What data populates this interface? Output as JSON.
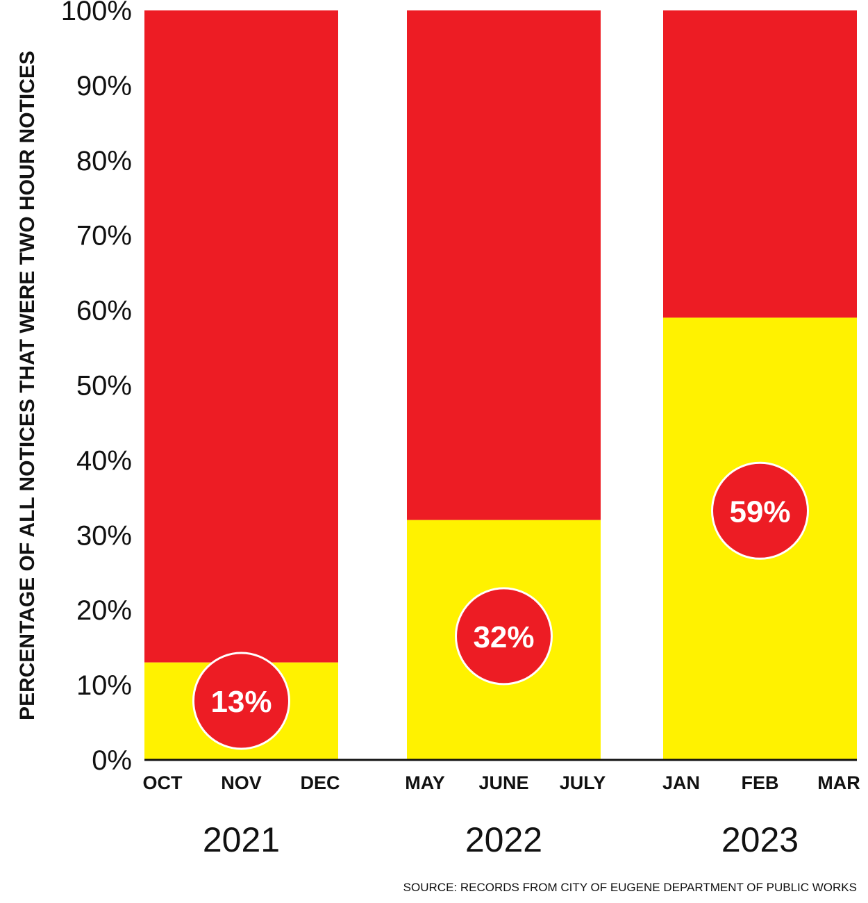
{
  "chart_data": {
    "type": "bar",
    "stacked": true,
    "ylabel": "PERCENTAGE OF ALL NOTICES THAT WERE TWO HOUR NOTICES",
    "ylim": [
      0,
      100
    ],
    "yticks": [
      "0%",
      "10%",
      "20%",
      "30%",
      "40%",
      "50%",
      "60%",
      "70%",
      "80%",
      "90%",
      "100%"
    ],
    "groups": [
      {
        "year": "2021",
        "months": [
          "OCT",
          "NOV",
          "DEC"
        ],
        "value": 13,
        "label": "13%"
      },
      {
        "year": "2022",
        "months": [
          "MAY",
          "JUNE",
          "JULY"
        ],
        "value": 32,
        "label": "32%"
      },
      {
        "year": "2023",
        "months": [
          "JAN",
          "FEB",
          "MAR"
        ],
        "value": 59,
        "label": "59%"
      }
    ],
    "colors": {
      "two_hour": "#FFF200",
      "other": "#ED1C24",
      "badge": "#ED1C24",
      "badge_text": "#FFFFFF",
      "axis": "#111111"
    },
    "source": "SOURCE: RECORDS FROM CITY OF EUGENE DEPARTMENT OF PUBLIC WORKS",
    "grid": false,
    "legend": "none"
  }
}
